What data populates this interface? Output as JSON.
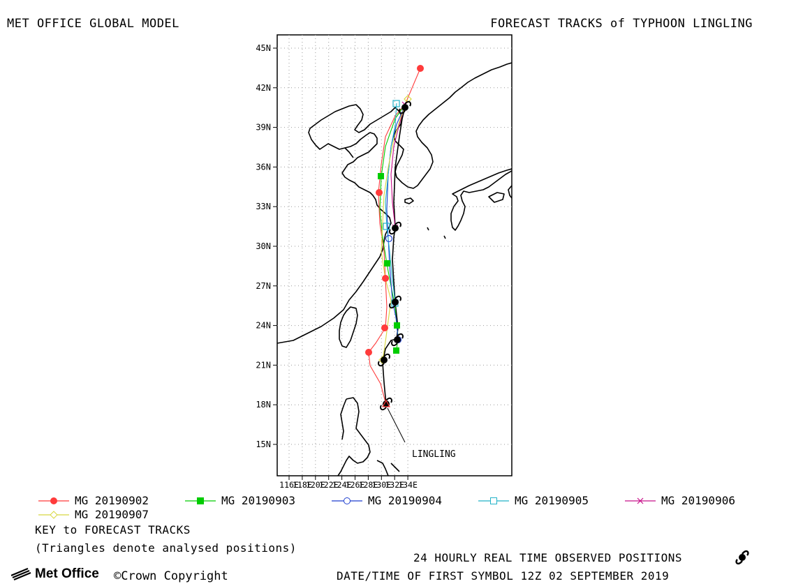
{
  "header": {
    "left_title": "MET OFFICE GLOBAL MODEL",
    "right_title": "FORECAST TRACKS of TYPHOON LINGLING"
  },
  "map": {
    "lat_ticks": [
      "45N",
      "42N",
      "39N",
      "36N",
      "33N",
      "30N",
      "27N",
      "24N",
      "21N",
      "18N",
      "15N"
    ],
    "lon_ticks": [
      "116E",
      "118E",
      "120E",
      "122E",
      "124E",
      "126E",
      "128E",
      "130E",
      "132E",
      "134E"
    ],
    "storm_label": "LINGLING",
    "colors": {
      "mg0902": "#ff3b3b",
      "mg0903": "#00cc00",
      "mg0904": "#1f3fcf",
      "mg0905": "#22b2c8",
      "mg0906": "#c8108a",
      "mg0907": "#d8d840",
      "observed": "#000000"
    }
  },
  "legend": {
    "items": [
      {
        "label": "MG 20190902",
        "color": "#ff3b3b",
        "marker": "filled-circle"
      },
      {
        "label": "MG 20190903",
        "color": "#00cc00",
        "marker": "filled-square"
      },
      {
        "label": "MG 20190904",
        "color": "#1f3fcf",
        "marker": "open-circle"
      },
      {
        "label": "MG 20190905",
        "color": "#22b2c8",
        "marker": "open-square"
      },
      {
        "label": "MG 20190906",
        "color": "#c8108a",
        "marker": "cross"
      },
      {
        "label": "MG 20190907",
        "color": "#d8d840",
        "marker": "open-diamond"
      }
    ],
    "key_title": "KEY to FORECAST TRACKS",
    "key_note": "(Triangles denote analysed positions)"
  },
  "footer": {
    "observed": "24 HOURLY REAL TIME OBSERVED POSITIONS",
    "datetime": "DATE/TIME OF FIRST SYMBOL 12Z 02 SEPTEMBER 2019",
    "logo_text": "Met Office",
    "copyright": "©Crown Copyright"
  }
}
